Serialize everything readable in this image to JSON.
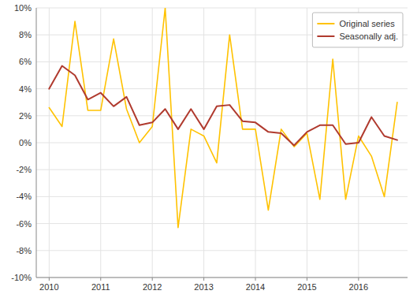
{
  "chart_data": {
    "type": "line",
    "x": [
      2010.0,
      2010.25,
      2010.5,
      2010.75,
      2011.0,
      2011.25,
      2011.5,
      2011.75,
      2012.0,
      2012.25,
      2012.5,
      2012.75,
      2013.0,
      2013.25,
      2013.5,
      2013.75,
      2014.0,
      2014.25,
      2014.5,
      2014.75,
      2015.0,
      2015.25,
      2015.5,
      2015.75,
      2016.0,
      2016.25,
      2016.5,
      2016.75
    ],
    "series": [
      {
        "name": "Original series",
        "color": "#FFC200",
        "values": [
          2.6,
          1.2,
          9.0,
          2.4,
          2.4,
          7.7,
          2.5,
          0.0,
          1.2,
          10.0,
          -6.3,
          1.0,
          0.5,
          -1.5,
          8.0,
          1.0,
          1.0,
          -5.0,
          1.0,
          -0.3,
          0.7,
          -4.2,
          6.2,
          -4.2,
          0.5,
          -1.0,
          -4.0,
          3.0
        ]
      },
      {
        "name": "Seasonally adj.",
        "color": "#B03A2E",
        "values": [
          4.0,
          5.7,
          5.0,
          3.2,
          3.7,
          2.7,
          3.4,
          1.3,
          1.5,
          2.5,
          1.0,
          2.5,
          1.0,
          2.7,
          2.8,
          1.6,
          1.5,
          0.8,
          0.7,
          -0.2,
          0.8,
          1.3,
          1.3,
          -0.1,
          0.0,
          1.9,
          0.5,
          0.2
        ]
      }
    ],
    "xlim": [
      2009.75,
      2016.95
    ],
    "ylim": [
      -10,
      10
    ],
    "xticks": [
      2010,
      2011,
      2012,
      2013,
      2014,
      2015,
      2016
    ],
    "yticks": [
      {
        "value": -10,
        "label": "-10%"
      },
      {
        "value": -8,
        "label": "-8%"
      },
      {
        "value": -6,
        "label": "-6%"
      },
      {
        "value": -4,
        "label": "-4%"
      },
      {
        "value": -2,
        "label": "-2%"
      },
      {
        "value": 0,
        "label": "0%"
      },
      {
        "value": 2,
        "label": "2%"
      },
      {
        "value": 4,
        "label": "4%"
      },
      {
        "value": 6,
        "label": "6%"
      },
      {
        "value": 8,
        "label": "8%"
      },
      {
        "value": 10,
        "label": "10%"
      }
    ],
    "grid": true,
    "legend": "upper right"
  }
}
